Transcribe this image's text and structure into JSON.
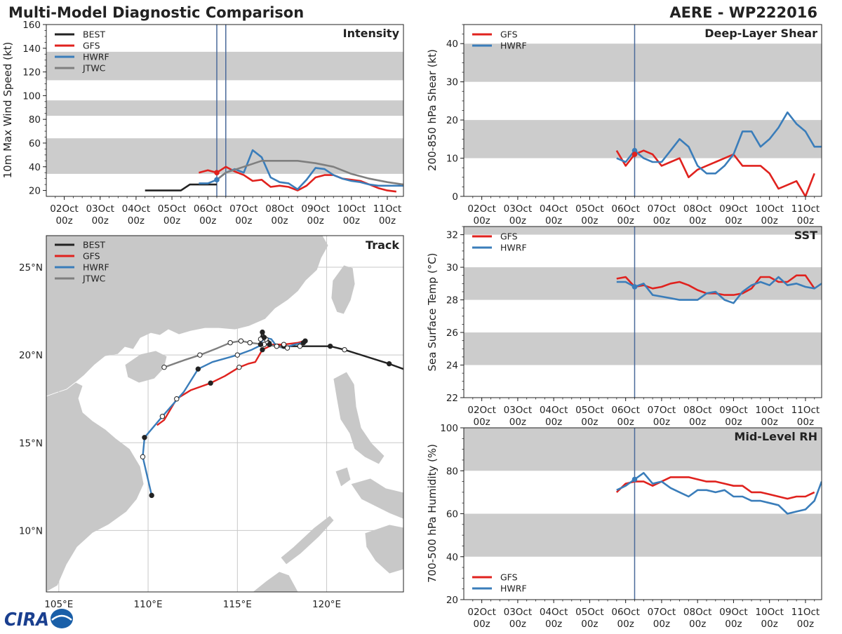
{
  "header": {
    "title": "Multi-Model Diagnostic Comparison",
    "storm": "AERE - WP222016"
  },
  "colors": {
    "BEST": "#222222",
    "GFS": "#e0221e",
    "HWRF": "#3a7dba",
    "JTWC": "#7f7f7f",
    "band": "#cccccc",
    "vline": "#4a6a9a",
    "land": "#c8c8c8"
  },
  "time_axis": {
    "range": [
      1.5,
      11.45
    ],
    "tick_days": [
      2,
      3,
      4,
      5,
      6,
      7,
      8,
      9,
      10,
      11
    ],
    "tick_labels": [
      "02Oct",
      "03Oct",
      "04Oct",
      "05Oct",
      "06Oct",
      "07Oct",
      "08Oct",
      "09Oct",
      "10Oct",
      "11Oct"
    ],
    "tick_sublabel": "00z"
  },
  "chart_data": [
    {
      "id": "intensity",
      "type": "line",
      "title": "Intensity",
      "ylabel": "10m Max Wind Speed (kt)",
      "ylim": [
        15,
        160
      ],
      "yticks": [
        20,
        40,
        60,
        80,
        100,
        120,
        140,
        160
      ],
      "bands": [
        [
          34,
          64
        ],
        [
          83,
          96
        ],
        [
          113,
          137
        ]
      ],
      "vlines": [
        6.25,
        6.5
      ],
      "legend": [
        "BEST",
        "GFS",
        "HWRF",
        "JTWC"
      ],
      "series": [
        {
          "name": "BEST",
          "x": [
            4.25,
            4.5,
            4.75,
            5,
            5.25,
            5.5,
            5.75,
            6,
            6.25
          ],
          "values": [
            20,
            20,
            20,
            20,
            20,
            25,
            25,
            25,
            25
          ]
        },
        {
          "name": "GFS",
          "x": [
            5.75,
            6,
            6.25,
            6.5,
            6.75,
            7,
            7.25,
            7.5,
            7.75,
            8,
            8.25,
            8.5,
            8.75,
            9,
            9.25,
            9.5,
            9.75,
            10,
            10.25,
            10.5,
            10.75,
            11,
            11.25
          ],
          "values": [
            35,
            37,
            35,
            40,
            36,
            33,
            28,
            29,
            23,
            24,
            23,
            20,
            24,
            31,
            33,
            33,
            30,
            29,
            28,
            25,
            22,
            20,
            19
          ]
        },
        {
          "name": "HWRF",
          "x": [
            5.75,
            6,
            6.25,
            6.5,
            6.75,
            7,
            7.25,
            7.5,
            7.75,
            8,
            8.25,
            8.5,
            8.75,
            9,
            9.25,
            9.5,
            9.75,
            10,
            10.25,
            10.5,
            10.75,
            11,
            11.25,
            11.45
          ],
          "values": [
            26,
            26,
            29,
            35,
            38,
            35,
            54,
            48,
            31,
            27,
            26,
            21,
            29,
            39,
            38,
            33,
            30,
            28,
            27,
            25,
            24,
            24,
            24,
            24
          ]
        },
        {
          "name": "JTWC",
          "x": [
            6.25,
            6.5,
            7,
            7.5,
            8,
            8.5,
            9,
            9.5,
            10,
            10.5,
            11,
            11.45
          ],
          "values": [
            29,
            35,
            40,
            45,
            45,
            45,
            43,
            40,
            34,
            30,
            27,
            25
          ]
        }
      ],
      "markers": [
        {
          "series": "HWRF",
          "x": 6.25,
          "value": 29
        },
        {
          "series": "GFS",
          "x": 6.25,
          "value": 35
        }
      ]
    },
    {
      "id": "shear",
      "type": "line",
      "title": "Deep-Layer Shear",
      "ylabel": "200-850 hPa Shear (kt)",
      "ylim": [
        0,
        45
      ],
      "yticks": [
        0,
        10,
        20,
        30,
        40
      ],
      "bands": [
        [
          10,
          20
        ],
        [
          30,
          40
        ]
      ],
      "vlines": [
        6.25
      ],
      "legend": [
        "GFS",
        "HWRF"
      ],
      "series": [
        {
          "name": "GFS",
          "x": [
            5.75,
            6,
            6.25,
            6.5,
            6.75,
            7,
            7.25,
            7.5,
            7.75,
            8,
            8.25,
            8.5,
            8.75,
            9,
            9.25,
            9.5,
            9.75,
            10,
            10.25,
            10.5,
            10.75,
            11,
            11.25
          ],
          "values": [
            12,
            8,
            11,
            12,
            11,
            8,
            9,
            10,
            5,
            7,
            8,
            9,
            10,
            11,
            8,
            8,
            8,
            6,
            2,
            3,
            4,
            0,
            6
          ]
        },
        {
          "name": "HWRF",
          "x": [
            5.75,
            6,
            6.25,
            6.5,
            6.75,
            7,
            7.25,
            7.5,
            7.75,
            8,
            8.25,
            8.5,
            8.75,
            9,
            9.25,
            9.5,
            9.75,
            10,
            10.25,
            10.5,
            10.75,
            11,
            11.25,
            11.45
          ],
          "values": [
            10,
            9,
            12,
            10,
            9,
            9,
            12,
            15,
            13,
            8,
            6,
            6,
            8,
            11,
            17,
            17,
            13,
            15,
            18,
            22,
            19,
            17,
            13,
            13
          ]
        }
      ],
      "markers": [
        {
          "series": "HWRF",
          "x": 6.25,
          "value": 12
        },
        {
          "series": "GFS",
          "x": 6.25,
          "value": 11
        }
      ]
    },
    {
      "id": "sst",
      "type": "line",
      "title": "SST",
      "ylabel": "Sea Surface Temp (°C)",
      "ylim": [
        22,
        32.5
      ],
      "yticks": [
        22,
        24,
        26,
        28,
        30,
        32
      ],
      "bands": [
        [
          24,
          26
        ],
        [
          28,
          30
        ],
        [
          32,
          32.5
        ]
      ],
      "vlines": [
        6.25
      ],
      "legend": [
        "GFS",
        "HWRF"
      ],
      "series": [
        {
          "name": "GFS",
          "x": [
            5.75,
            6,
            6.25,
            6.5,
            6.75,
            7,
            7.25,
            7.5,
            7.75,
            8,
            8.25,
            8.5,
            8.75,
            9,
            9.25,
            9.5,
            9.75,
            10,
            10.25,
            10.5,
            10.75,
            11,
            11.25
          ],
          "values": [
            29.3,
            29.4,
            28.8,
            28.9,
            28.7,
            28.8,
            29.0,
            29.1,
            28.9,
            28.6,
            28.4,
            28.4,
            28.3,
            28.3,
            28.4,
            28.7,
            29.4,
            29.4,
            29.1,
            29.1,
            29.5,
            29.5,
            28.7
          ]
        },
        {
          "name": "HWRF",
          "x": [
            5.75,
            6,
            6.25,
            6.5,
            6.75,
            7,
            7.25,
            7.5,
            7.75,
            8,
            8.25,
            8.5,
            8.75,
            9,
            9.25,
            9.5,
            9.75,
            10,
            10.25,
            10.5,
            10.75,
            11,
            11.25,
            11.45
          ],
          "values": [
            29.1,
            29.1,
            28.8,
            29.0,
            28.3,
            28.2,
            28.1,
            28.0,
            28.0,
            28.0,
            28.4,
            28.5,
            28.0,
            27.8,
            28.5,
            28.9,
            29.1,
            28.9,
            29.4,
            28.9,
            29.0,
            28.8,
            28.7,
            29.0
          ]
        }
      ],
      "markers": [
        {
          "series": "HWRF",
          "x": 6.25,
          "value": 28.8
        }
      ]
    },
    {
      "id": "rh",
      "type": "line",
      "title": "Mid-Level RH",
      "ylabel": "700-500 hPa Humidity (%)",
      "ylim": [
        20,
        100
      ],
      "yticks": [
        20,
        40,
        60,
        80,
        100
      ],
      "bands": [
        [
          40,
          60
        ],
        [
          80,
          100
        ]
      ],
      "vlines": [
        6.25
      ],
      "legend": [
        "GFS",
        "HWRF"
      ],
      "series": [
        {
          "name": "GFS",
          "x": [
            5.75,
            6,
            6.25,
            6.5,
            6.75,
            7,
            7.25,
            7.5,
            7.75,
            8,
            8.25,
            8.5,
            8.75,
            9,
            9.25,
            9.5,
            9.75,
            10,
            10.25,
            10.5,
            10.75,
            11,
            11.25
          ],
          "values": [
            70,
            74,
            75,
            75,
            73,
            75,
            77,
            77,
            77,
            76,
            75,
            75,
            74,
            73,
            73,
            70,
            70,
            69,
            68,
            67,
            68,
            68,
            70
          ]
        },
        {
          "name": "HWRF",
          "x": [
            5.75,
            6,
            6.25,
            6.5,
            6.75,
            7,
            7.25,
            7.5,
            7.75,
            8,
            8.25,
            8.5,
            8.75,
            9,
            9.25,
            9.5,
            9.75,
            10,
            10.25,
            10.5,
            10.75,
            11,
            11.25,
            11.45
          ],
          "values": [
            71,
            73,
            76,
            79,
            74,
            75,
            72,
            70,
            68,
            71,
            71,
            70,
            71,
            68,
            68,
            66,
            66,
            65,
            64,
            60,
            61,
            62,
            66,
            75
          ]
        }
      ],
      "markers": [
        {
          "series": "HWRF",
          "x": 6.25,
          "value": 76
        }
      ]
    },
    {
      "id": "track",
      "type": "map",
      "title": "Track",
      "lon_range": [
        104.3,
        124.3
      ],
      "lat_range": [
        6.5,
        26.8
      ],
      "lon_ticks": [
        105,
        110,
        115,
        120
      ],
      "lon_labels": [
        "105°E",
        "110°E",
        "115°E",
        "120°E"
      ],
      "lat_ticks": [
        10,
        15,
        20,
        25
      ],
      "lat_labels": [
        "10°N",
        "15°N",
        "20°N",
        "25°N"
      ],
      "legend": [
        "BEST",
        "GFS",
        "HWRF",
        "JTWC"
      ],
      "tracks": [
        {
          "name": "BEST",
          "lon": [
            124.3,
            123.5,
            121.0,
            120.2,
            118.5,
            117.6,
            117.2,
            116.8,
            116.5,
            116.3,
            116.3,
            116.4,
            116.6,
            116.9
          ],
          "lat": [
            19.2,
            19.5,
            20.3,
            20.5,
            20.5,
            20.5,
            20.5,
            20.6,
            20.6,
            20.6,
            20.9,
            21.3,
            20.9,
            20.7
          ],
          "dots": [
            1,
            2,
            3,
            4,
            5,
            6,
            7,
            8,
            9,
            10,
            11,
            12
          ]
        },
        {
          "name": "GFS",
          "lon": [
            118.8,
            118.4,
            117.6,
            117.0,
            116.6,
            116.4,
            116.0,
            115.6,
            115.1,
            114.3,
            113.5,
            112.4,
            111.6,
            110.9,
            110.5
          ],
          "lat": [
            20.8,
            20.7,
            20.6,
            20.6,
            20.4,
            20.3,
            19.6,
            19.5,
            19.3,
            18.8,
            18.4,
            18.0,
            17.5,
            16.3,
            16.0
          ],
          "dots": [
            0,
            2,
            5,
            8,
            10,
            12
          ]
        },
        {
          "name": "HWRF",
          "lon": [
            118.7,
            118.2,
            117.6,
            117.2,
            116.9,
            116.5,
            116.2,
            115.8,
            115.0,
            113.6,
            112.8,
            112.0,
            110.8,
            109.8,
            109.7,
            110.2
          ],
          "lat": [
            20.7,
            20.6,
            20.4,
            20.5,
            20.9,
            21.0,
            20.5,
            20.3,
            20.0,
            19.6,
            19.2,
            17.9,
            16.5,
            15.3,
            14.2,
            12.0
          ],
          "dots": [
            0,
            3,
            5,
            8,
            10,
            12,
            13,
            14,
            15
          ]
        },
        {
          "name": "JTWC",
          "lon": [
            117.8,
            117.2,
            116.5,
            115.7,
            115.2,
            114.6,
            113.9,
            112.9,
            112.0,
            110.9
          ],
          "lat": [
            20.4,
            20.5,
            20.6,
            20.7,
            20.8,
            20.7,
            20.4,
            20.0,
            19.7,
            19.3
          ],
          "dots": [
            0,
            3,
            4,
            5,
            7,
            9
          ]
        }
      ]
    }
  ]
}
